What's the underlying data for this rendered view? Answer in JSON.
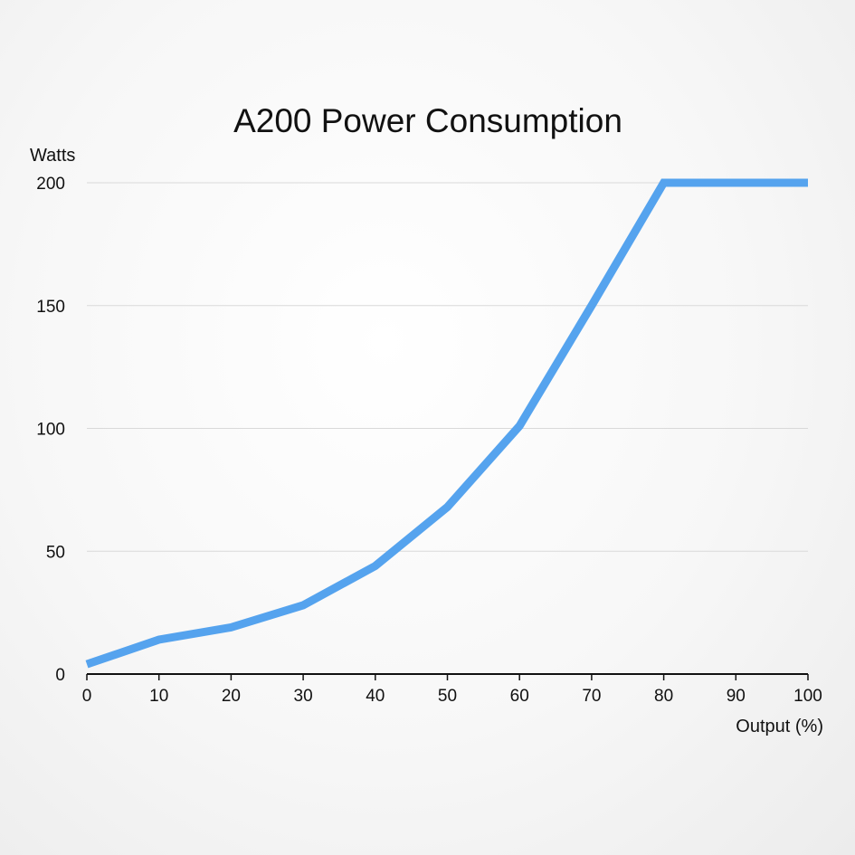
{
  "colors": {
    "series": "#55a3ee"
  },
  "chart_data": {
    "type": "line",
    "title": "A200 Power Consumption",
    "xlabel": "Output (%)",
    "ylabel": "Watts",
    "xlim": [
      0,
      100
    ],
    "ylim": [
      0,
      200
    ],
    "x_ticks": [
      0,
      10,
      20,
      30,
      40,
      50,
      60,
      70,
      80,
      90,
      100
    ],
    "y_ticks": [
      0,
      50,
      100,
      150,
      200
    ],
    "grid": "horizontal",
    "legend": "none",
    "x": [
      0,
      10,
      20,
      30,
      40,
      50,
      60,
      70,
      80,
      90,
      100
    ],
    "series": [
      {
        "values": [
          4,
          14,
          19,
          28,
          44,
          68,
          101,
          150,
          200,
          200,
          200
        ]
      }
    ]
  }
}
